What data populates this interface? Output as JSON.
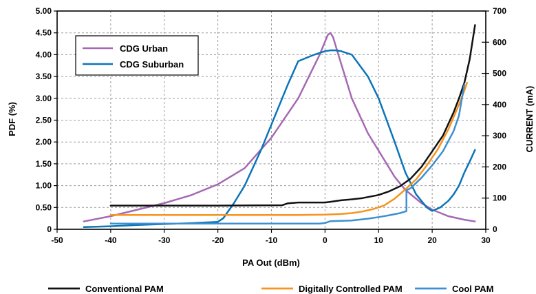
{
  "chart_data": {
    "type": "line",
    "xlabel": "PA Out (dBm)",
    "ylabel_left": "PDF (%)",
    "ylabel_right": "CURRENT (mA)",
    "xlim": [
      -50,
      30
    ],
    "ylim_left": [
      0,
      5.0
    ],
    "ylim_right": [
      0,
      700
    ],
    "x_ticks": [
      "-50",
      "-40",
      "-30",
      "-20",
      "-10",
      "0",
      "10",
      "20",
      "30"
    ],
    "y_left_ticks": [
      "0",
      "0.50",
      "1.00",
      "1.50",
      "2.00",
      "2.50",
      "3.00",
      "3.50",
      "4.00",
      "4.50",
      "5.00"
    ],
    "y_right_ticks": [
      "0",
      "100",
      "200",
      "300",
      "400",
      "500",
      "600",
      "700"
    ],
    "grid": true,
    "legend_inner_position": "top-left",
    "legend_bottom_position": "bottom",
    "series": [
      {
        "name": "CDG Urban",
        "axis": "left",
        "color": "#a569b3",
        "legend": "inner",
        "x": [
          -45,
          -40,
          -35,
          -30,
          -25,
          -20,
          -15,
          -10,
          -5,
          -3,
          -1,
          0,
          0.5,
          1,
          1.5,
          2,
          3,
          5,
          8,
          10,
          13,
          15,
          18,
          20,
          23,
          26,
          28
        ],
        "y": [
          0.18,
          0.3,
          0.45,
          0.6,
          0.78,
          1.03,
          1.4,
          2.1,
          3.0,
          3.5,
          4.0,
          4.3,
          4.45,
          4.5,
          4.4,
          4.2,
          3.8,
          3.0,
          2.2,
          1.8,
          1.2,
          0.9,
          0.6,
          0.45,
          0.3,
          0.22,
          0.18
        ]
      },
      {
        "name": "CDG Suburban",
        "axis": "left",
        "color": "#0a75b8",
        "legend": "inner",
        "x": [
          -45,
          -40,
          -35,
          -30,
          -25,
          -20,
          -19,
          -17,
          -15,
          -12,
          -10,
          -7,
          -5,
          -2,
          0,
          1,
          2,
          3,
          5,
          8,
          10,
          13,
          15,
          17,
          19,
          20,
          21.5,
          23,
          24,
          25,
          26,
          27,
          28
        ],
        "y": [
          0.05,
          0.07,
          0.1,
          0.12,
          0.14,
          0.17,
          0.25,
          0.6,
          1.0,
          1.8,
          2.4,
          3.3,
          3.85,
          4.0,
          4.08,
          4.1,
          4.1,
          4.08,
          4.0,
          3.5,
          3.0,
          2.0,
          1.3,
          0.8,
          0.5,
          0.42,
          0.5,
          0.65,
          0.8,
          1.0,
          1.3,
          1.55,
          1.82
        ]
      },
      {
        "name": "Conventional PAM",
        "axis": "right",
        "color": "#111111",
        "legend": "bottom",
        "x": [
          -40,
          -30,
          -20,
          -8,
          -7,
          -5,
          0,
          1,
          3,
          5,
          7,
          10,
          12,
          14,
          16,
          18,
          20,
          22,
          24,
          25,
          26,
          27,
          28
        ],
        "y": [
          76,
          76,
          76,
          77,
          83,
          86,
          86,
          88,
          93,
          96,
          100,
          110,
          122,
          138,
          163,
          200,
          250,
          300,
          375,
          420,
          470,
          545,
          655
        ]
      },
      {
        "name": "Digitally Controlled PAM",
        "axis": "right",
        "color": "#f7931e",
        "legend": "bottom",
        "x": [
          -40,
          -30,
          -20,
          -10,
          -5,
          0,
          3,
          5,
          7,
          9,
          11,
          13,
          15,
          17,
          19,
          21,
          23,
          25,
          26,
          26.5
        ],
        "y": [
          46,
          46,
          46,
          46,
          46,
          47,
          49,
          52,
          57,
          65,
          76,
          98,
          128,
          160,
          205,
          255,
          320,
          400,
          445,
          470
        ]
      },
      {
        "name": "Cool PAM",
        "axis": "right",
        "color": "#3d8fd1",
        "legend": "bottom",
        "x": [
          -40,
          -30,
          -20,
          -10,
          -1,
          0,
          1,
          5,
          8,
          10,
          12,
          14,
          15.2,
          15.2,
          16,
          18,
          20,
          22,
          24,
          25,
          26
        ],
        "y": [
          18,
          18,
          18,
          18,
          18,
          20,
          26,
          28,
          34,
          39,
          45,
          52,
          58,
          125,
          132,
          165,
          205,
          250,
          315,
          365,
          465
        ]
      }
    ]
  }
}
